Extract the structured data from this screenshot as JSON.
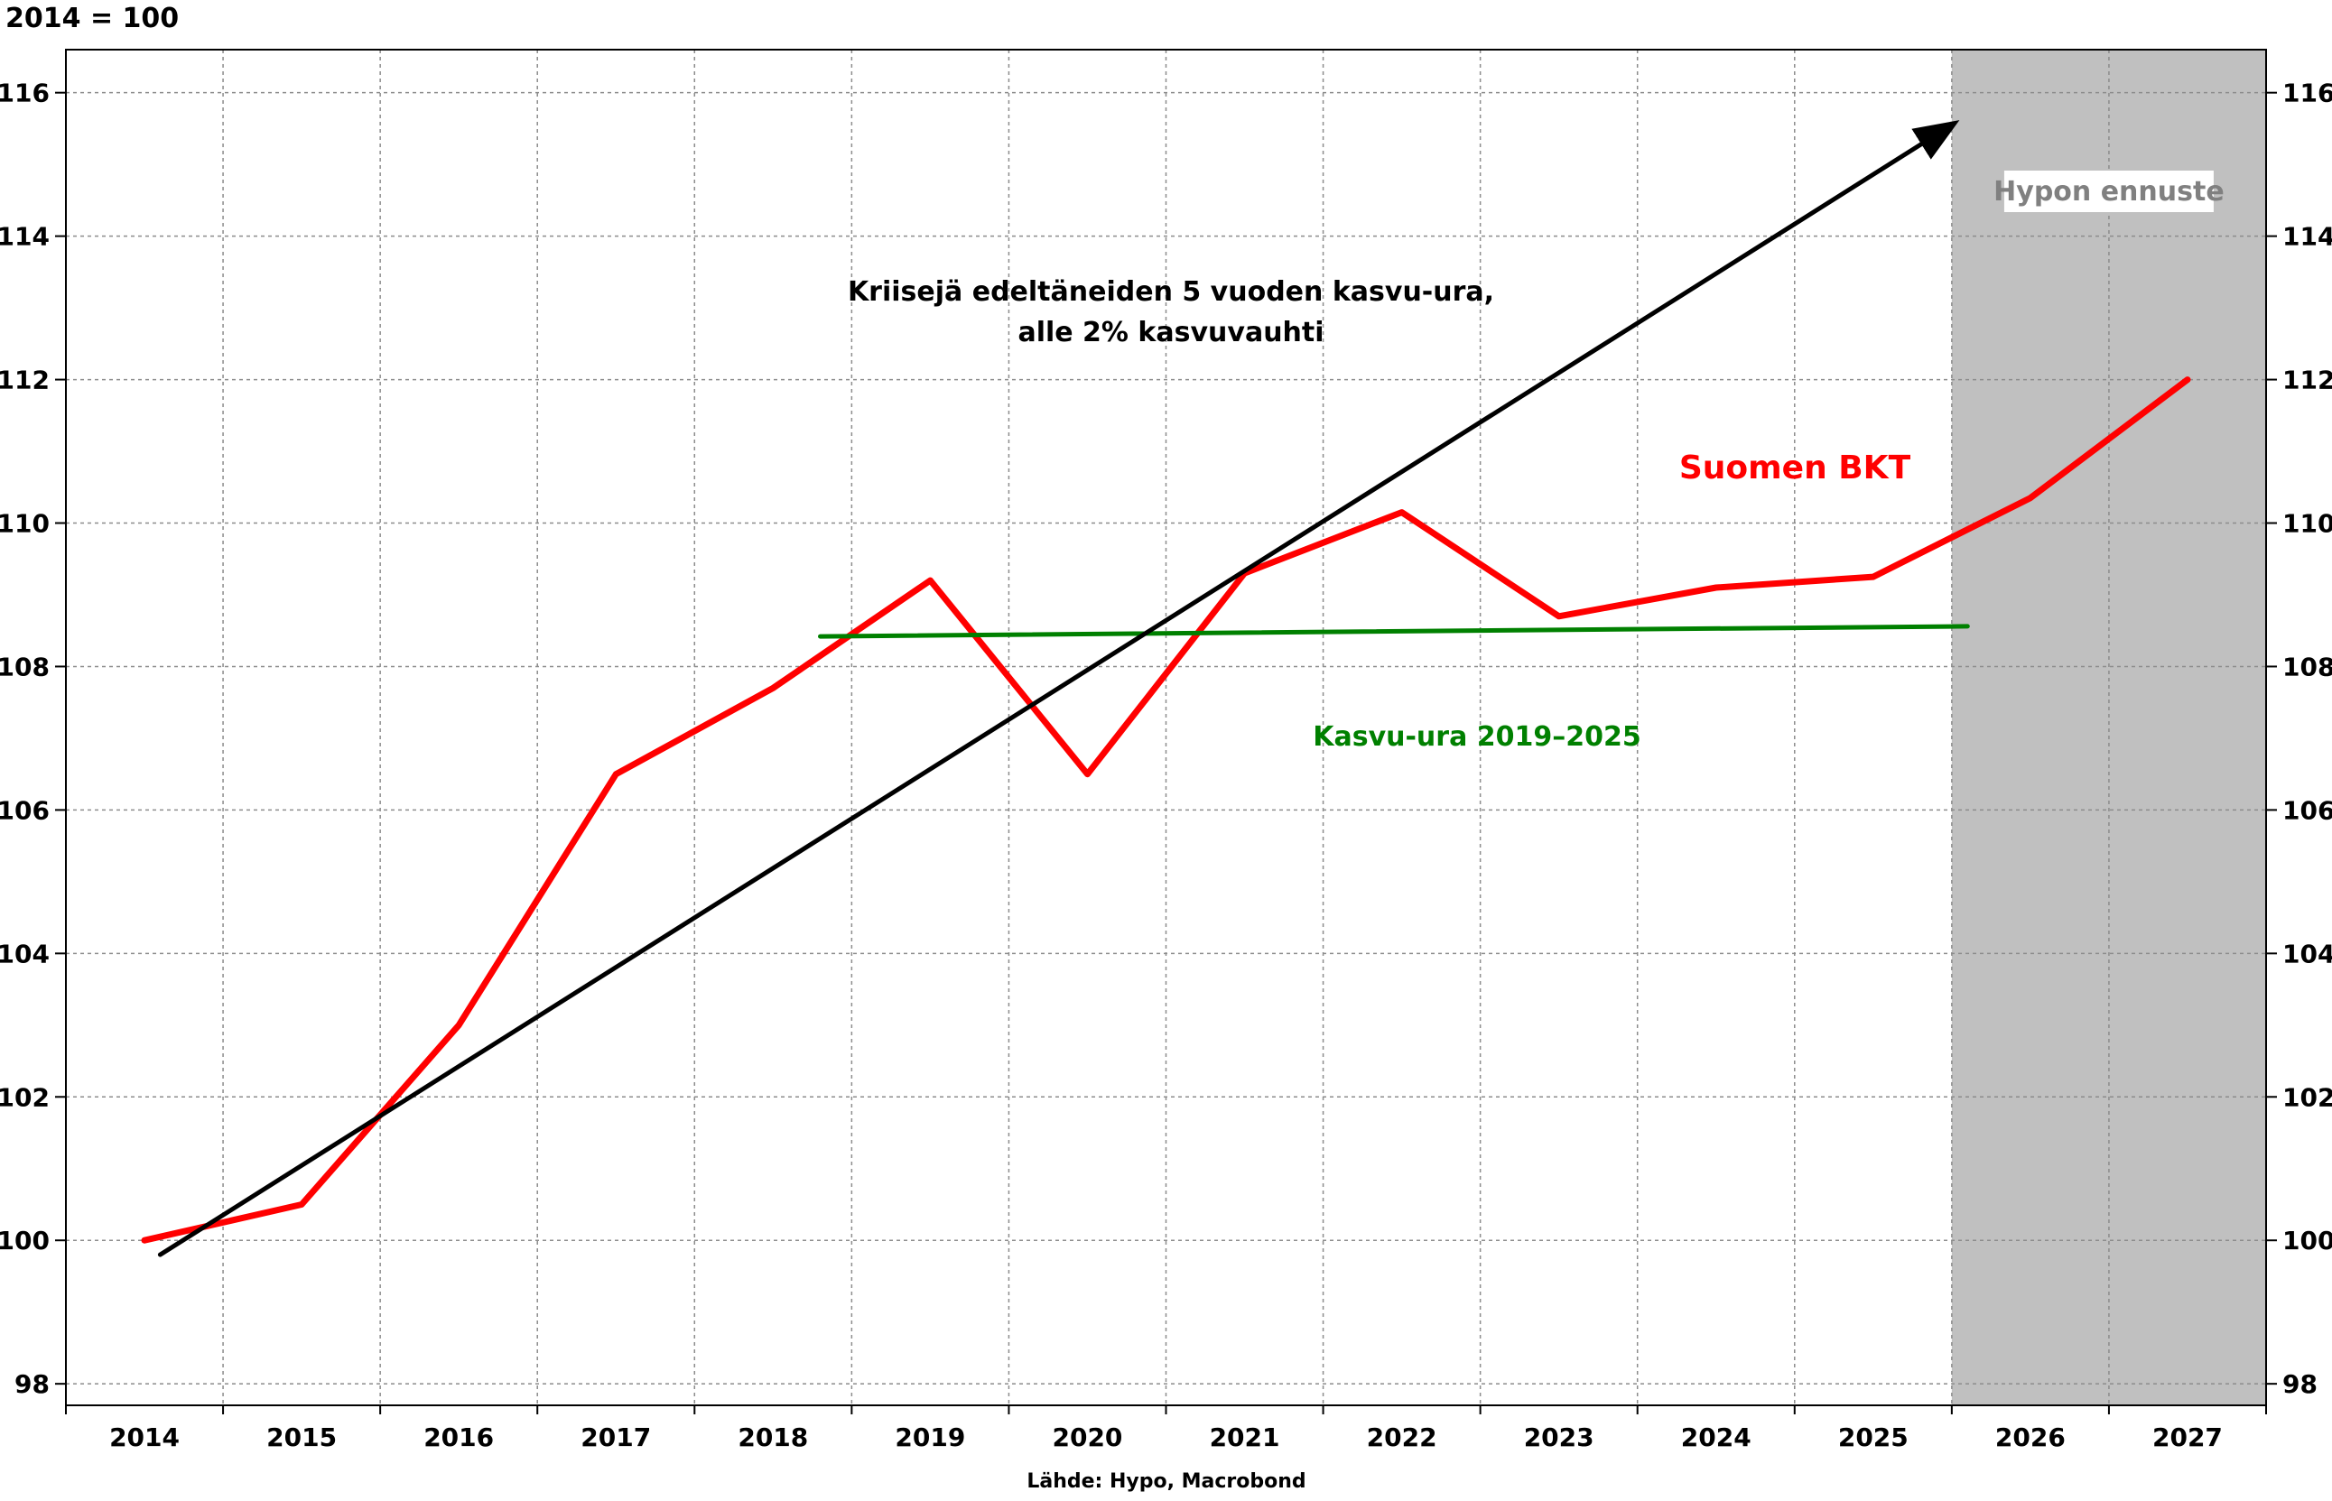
{
  "chart_data": {
    "type": "line",
    "unit_label": "2014 = 100",
    "source": "Lähde: Hypo, Macrobond",
    "categories": [
      "2014",
      "2015",
      "2016",
      "2017",
      "2018",
      "2019",
      "2020",
      "2021",
      "2022",
      "2023",
      "2024",
      "2025",
      "2026",
      "2027"
    ],
    "ylim": [
      97.7,
      116.6
    ],
    "yticks": [
      98,
      100,
      102,
      104,
      106,
      108,
      110,
      112,
      114,
      116
    ],
    "grid": true,
    "forecast": {
      "label": "Hypon ennuste",
      "from": 2025.5,
      "to": 2027.5,
      "color": "#c0c0c0"
    },
    "series": [
      {
        "name": "Suomen BKT",
        "color": "#ff0000",
        "x": [
          2014,
          2015,
          2016,
          2017,
          2018,
          2019,
          2020,
          2021,
          2022,
          2023,
          2024,
          2025,
          2026,
          2027
        ],
        "values": [
          100.0,
          100.5,
          103.0,
          106.5,
          107.7,
          109.2,
          106.5,
          109.3,
          110.15,
          108.7,
          109.1,
          109.25,
          110.35,
          112.0
        ]
      },
      {
        "name": "Kasvu-ura 2019–2025",
        "color": "#008000",
        "x": [
          2018.3,
          2025.6
        ],
        "values": [
          108.42,
          108.56
        ]
      },
      {
        "name": "Kriisejä edeltäneiden 5 vuoden kasvu-ura, alle 2% kasvuvauhti",
        "color": "#000000",
        "x": [
          2014.1,
          2025.5
        ],
        "values": [
          99.8,
          115.55
        ]
      }
    ],
    "annotations": {
      "trend_line1": "Kriisejä edeltäneiden 5 vuoden kasvu-ura,",
      "trend_line2": "alle 2% kasvuvauhti",
      "gdp": "Suomen BKT",
      "green_trend": "Kasvu-ura 2019–2025"
    }
  }
}
